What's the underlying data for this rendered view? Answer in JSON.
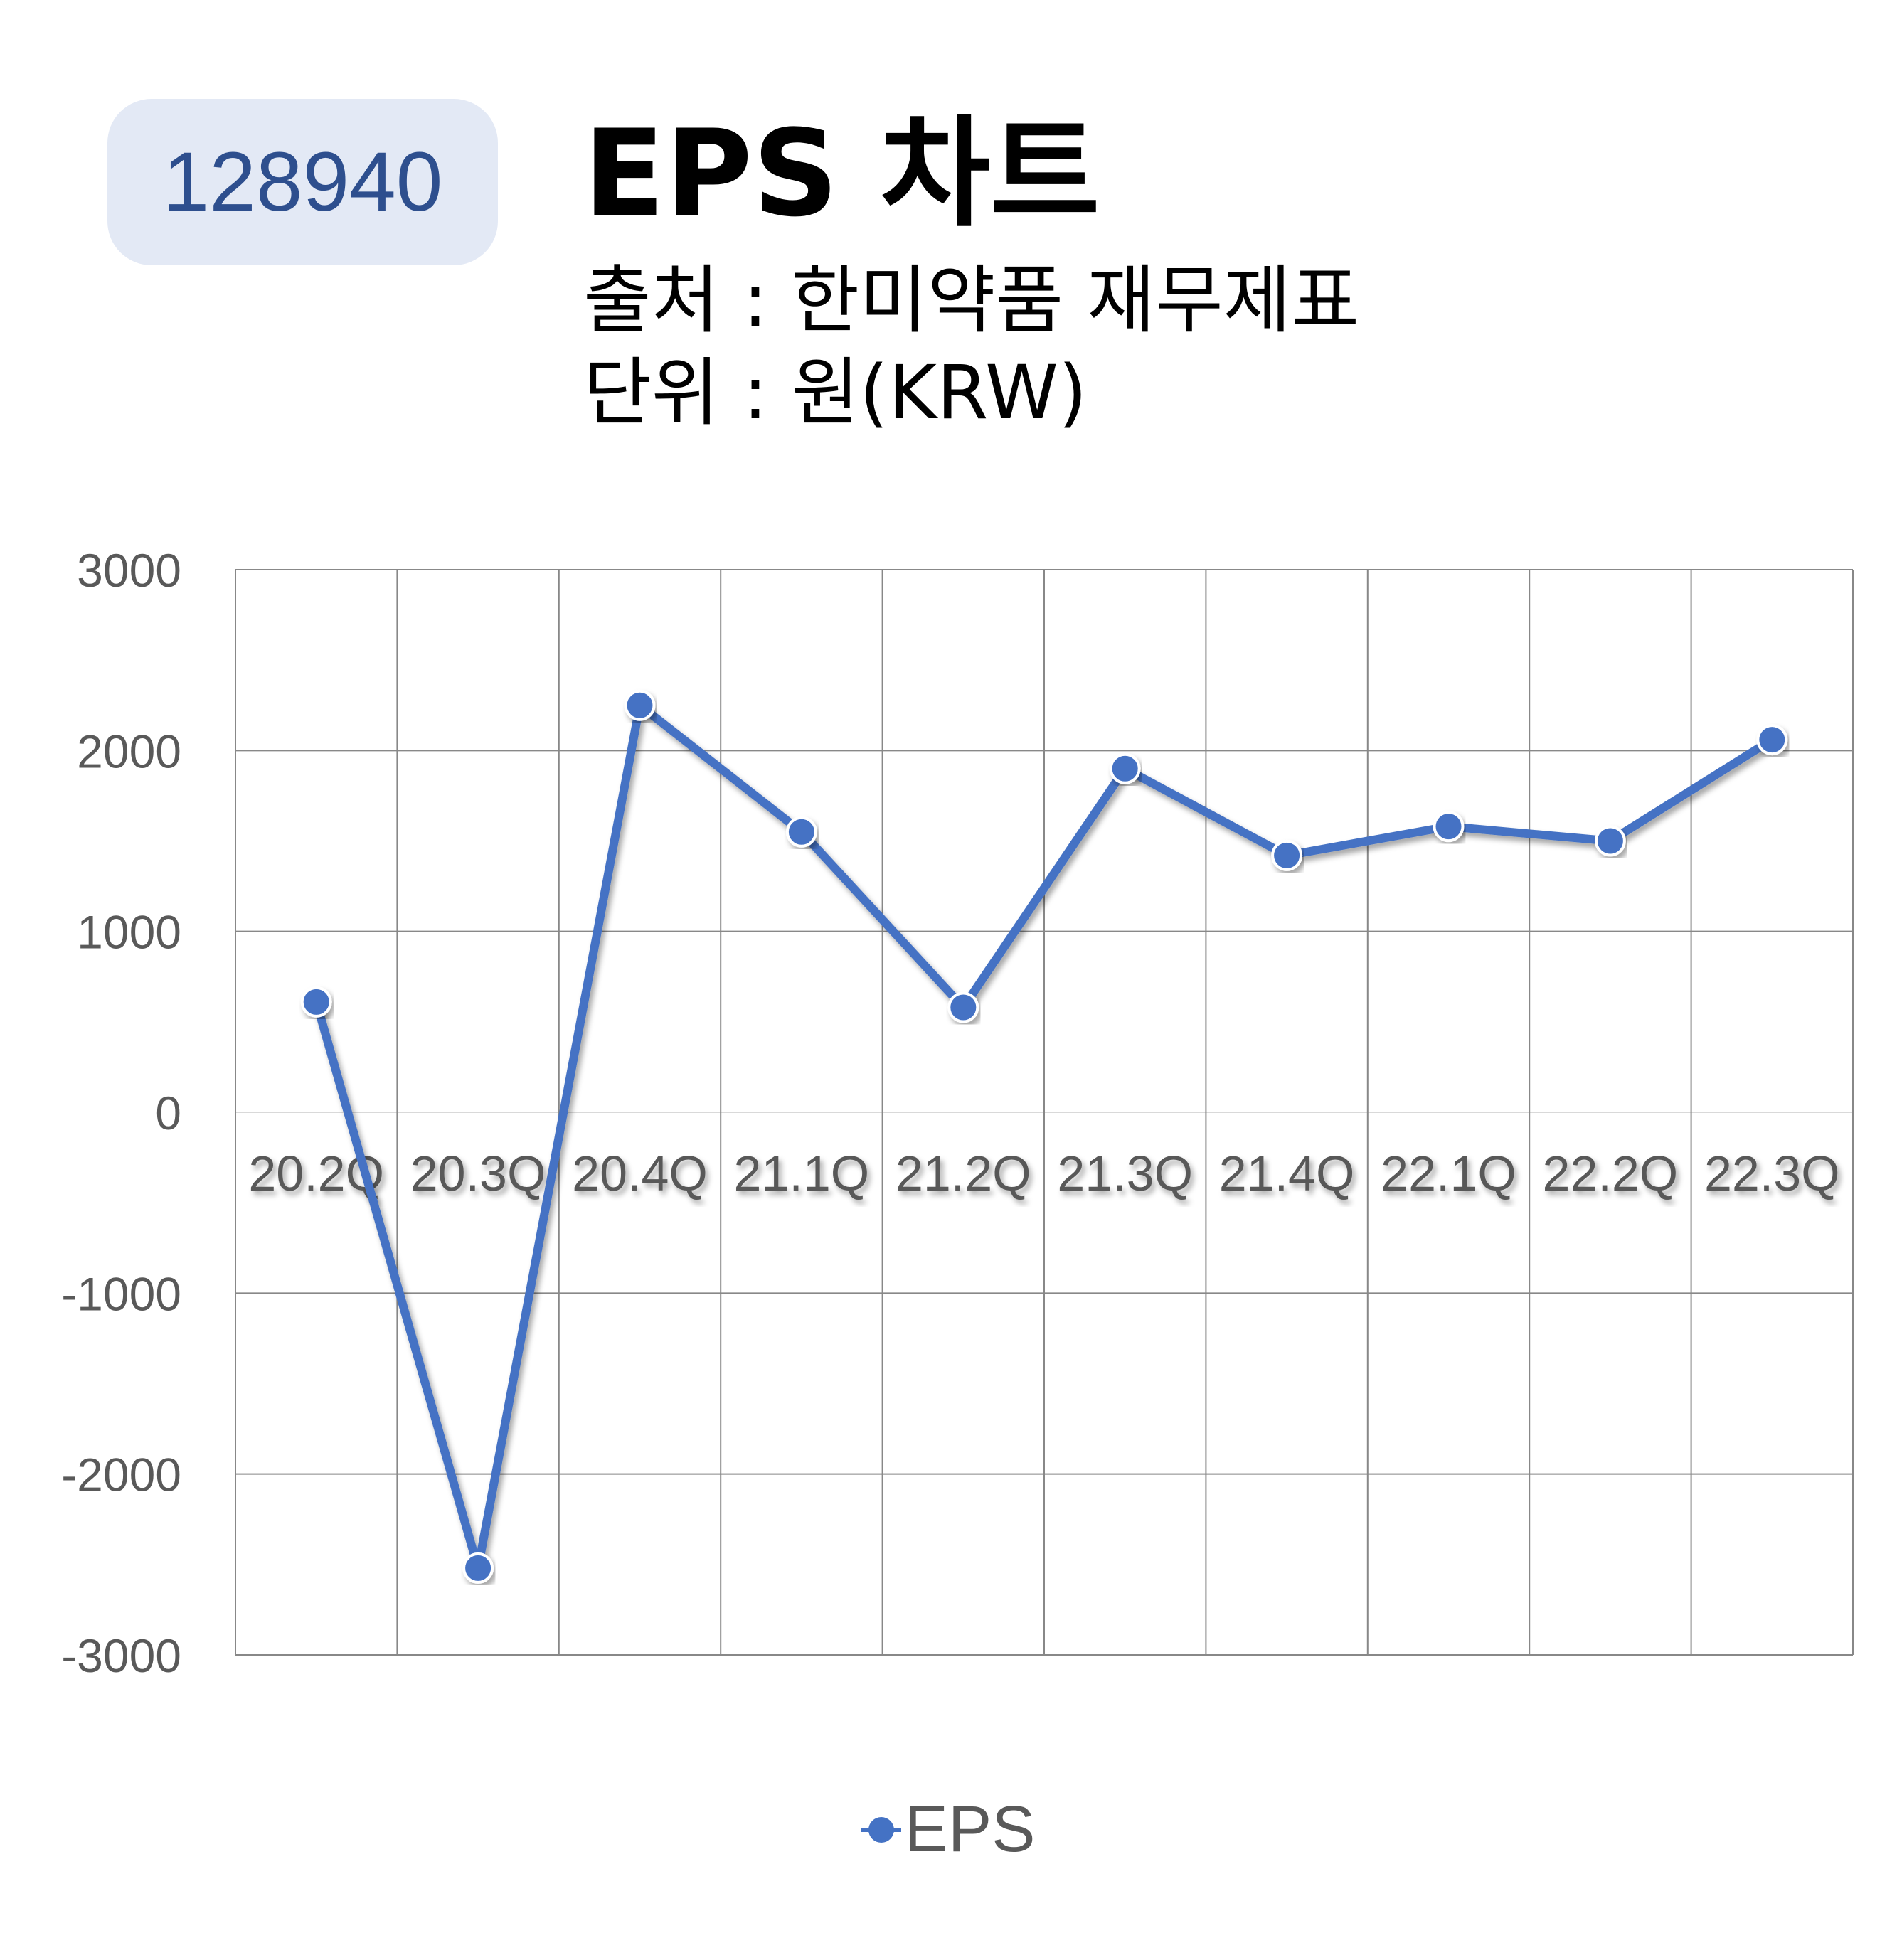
{
  "badge": {
    "code": "128940"
  },
  "header": {
    "title": "EPS 차트",
    "source": "출처 : 한미약품 재무제표",
    "unit": "단위 : 원(KRW)"
  },
  "colors": {
    "series": "#4472c4",
    "badge_bg": "#e3e9f5",
    "badge_text": "#2e4f8e",
    "grid": "#888888",
    "tick_text": "#595959"
  },
  "chart_data": {
    "type": "line",
    "categories": [
      "20.2Q",
      "20.3Q",
      "20.4Q",
      "21.1Q",
      "21.2Q",
      "21.3Q",
      "21.4Q",
      "22.1Q",
      "22.2Q",
      "22.3Q"
    ],
    "series": [
      {
        "name": "EPS",
        "values": [
          610,
          -2520,
          2250,
          1550,
          580,
          1900,
          1420,
          1580,
          1500,
          2060
        ]
      }
    ],
    "ylim": [
      -3000,
      3000
    ],
    "yticks": [
      3000,
      2000,
      1000,
      0,
      -1000,
      -2000,
      -3000
    ],
    "grid": true,
    "legend": "bottom",
    "markers": true
  },
  "legend": {
    "label": "EPS"
  }
}
